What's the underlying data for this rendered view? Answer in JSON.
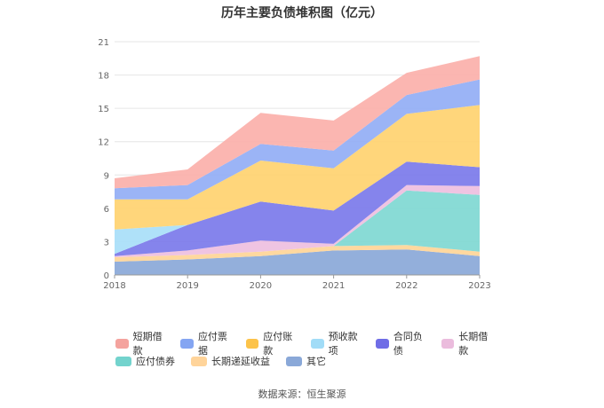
{
  "chart_data": {
    "type": "area",
    "stacked": true,
    "title": "历年主要负债堆积图（亿元）",
    "categories": [
      "2018",
      "2019",
      "2020",
      "2021",
      "2022",
      "2023"
    ],
    "ylim": [
      0,
      21
    ],
    "yticks": [
      "0",
      "3",
      "6",
      "9",
      "12",
      "15",
      "18",
      "21"
    ],
    "grid": "horizontal",
    "legend_position": "bottom",
    "series": [
      {
        "name": "其它",
        "color": "#8aa8d8",
        "values": [
          1.2,
          1.4,
          1.7,
          2.2,
          2.3,
          1.7
        ]
      },
      {
        "name": "长期递延收益",
        "color": "#ffd597",
        "values": [
          0.4,
          0.4,
          0.4,
          0.4,
          0.4,
          0.4
        ]
      },
      {
        "name": "应付债券",
        "color": "#7fd8d3",
        "values": [
          0.0,
          0.0,
          0.0,
          0.0,
          4.9,
          5.1
        ]
      },
      {
        "name": "长期借款",
        "color": "#eebfe0",
        "values": [
          0.1,
          0.4,
          1.0,
          0.2,
          0.5,
          0.8
        ]
      },
      {
        "name": "合同负债",
        "color": "#7b79ea",
        "values": [
          0.2,
          2.3,
          3.5,
          3.0,
          2.1,
          1.7
        ]
      },
      {
        "name": "预收款项",
        "color": "#a8def8",
        "values": [
          2.2,
          0.0,
          0.0,
          0.0,
          0.0,
          0.0
        ]
      },
      {
        "name": "应付账款",
        "color": "#ffd270",
        "values": [
          2.7,
          2.3,
          3.7,
          3.8,
          4.3,
          5.6
        ]
      },
      {
        "name": "应付票据",
        "color": "#92aef5",
        "values": [
          1.0,
          1.3,
          1.5,
          1.6,
          1.7,
          2.3
        ]
      },
      {
        "name": "短期借款",
        "color": "#fbb0aa",
        "values": [
          0.9,
          1.4,
          2.8,
          2.7,
          2.0,
          2.1
        ]
      }
    ]
  },
  "legend_rows": [
    [
      {
        "label": "短期借款",
        "color": "#f4a39e"
      },
      {
        "label": "应付票据",
        "color": "#84a5f2"
      },
      {
        "label": "应付账款",
        "color": "#fcc34a"
      },
      {
        "label": "预收款项",
        "color": "#a1dcf7"
      },
      {
        "label": "合同负债",
        "color": "#6f6de6"
      },
      {
        "label": "长期借款",
        "color": "#ebbcdd"
      }
    ],
    [
      {
        "label": "应付债券",
        "color": "#73d3cd"
      },
      {
        "label": "长期递延收益",
        "color": "#ffd49a"
      },
      {
        "label": "其它",
        "color": "#8aa8d8"
      }
    ]
  ],
  "source": "数据来源：恒生聚源"
}
